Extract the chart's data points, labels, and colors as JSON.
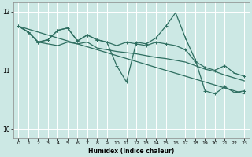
{
  "xlabel": "Humidex (Indice chaleur)",
  "bg_color": "#cce8e4",
  "grid_color": "#ffffff",
  "line_color": "#2e6e60",
  "xlim": [
    -0.5,
    23.5
  ],
  "ylim": [
    9.85,
    12.15
  ],
  "yticks": [
    10,
    11,
    12
  ],
  "xticks": [
    0,
    1,
    2,
    3,
    4,
    5,
    6,
    7,
    8,
    9,
    10,
    11,
    12,
    13,
    14,
    15,
    16,
    17,
    18,
    19,
    20,
    21,
    22,
    23
  ],
  "trend_x": [
    0,
    23
  ],
  "trend_y": [
    11.75,
    10.6
  ],
  "series_smooth_x": [
    0,
    1,
    2,
    3,
    4,
    5,
    6,
    7,
    8,
    9,
    10,
    11,
    12,
    13,
    14,
    15,
    16,
    17,
    18,
    19,
    20,
    21,
    22,
    23
  ],
  "series_smooth_y": [
    11.75,
    11.65,
    11.48,
    11.45,
    11.42,
    11.48,
    11.45,
    11.48,
    11.38,
    11.35,
    11.32,
    11.3,
    11.28,
    11.25,
    11.22,
    11.2,
    11.17,
    11.14,
    11.08,
    11.02,
    10.98,
    10.92,
    10.87,
    10.82
  ],
  "series_mid_x": [
    0,
    1,
    2,
    3,
    4,
    5,
    6,
    7,
    8,
    9,
    10,
    11,
    12,
    13,
    14,
    15,
    16,
    17,
    18,
    19,
    20,
    21,
    22,
    23
  ],
  "series_mid_y": [
    11.75,
    11.65,
    11.48,
    11.52,
    11.68,
    11.72,
    11.5,
    11.6,
    11.52,
    11.48,
    11.42,
    11.48,
    11.45,
    11.42,
    11.48,
    11.45,
    11.42,
    11.35,
    11.15,
    11.05,
    11.0,
    11.08,
    10.95,
    10.9
  ],
  "series_jagged_x": [
    0,
    1,
    2,
    3,
    4,
    5,
    6,
    7,
    8,
    9,
    10,
    11,
    12,
    13,
    14,
    15,
    16,
    17,
    18,
    19,
    20,
    21,
    22,
    23
  ],
  "series_jagged_y": [
    11.75,
    11.65,
    11.48,
    11.52,
    11.68,
    11.72,
    11.5,
    11.6,
    11.52,
    11.48,
    11.08,
    10.8,
    11.48,
    11.45,
    11.55,
    11.75,
    11.98,
    11.55,
    11.18,
    10.65,
    10.6,
    10.72,
    10.62,
    10.65
  ]
}
